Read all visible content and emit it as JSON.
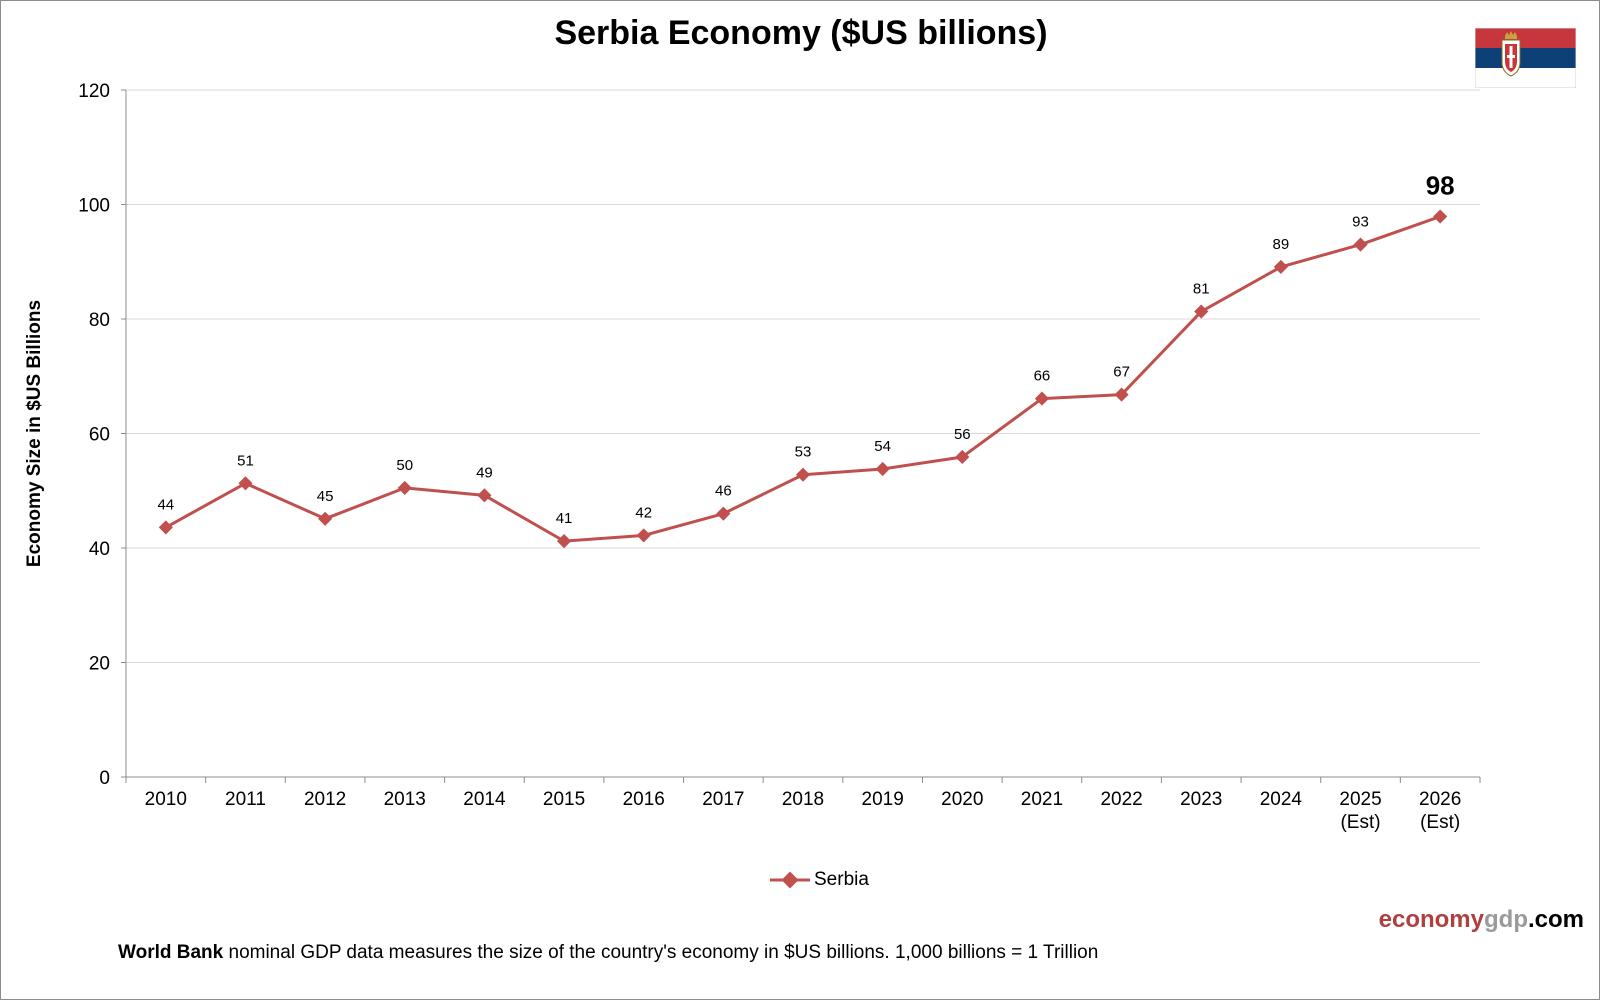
{
  "title": "Serbia Economy ($US billions)",
  "brand": {
    "part1": "economy",
    "part2": "gdp",
    "part3": ".com"
  },
  "footnote": {
    "bold": "World Bank",
    "rest": " nominal GDP data  measures the size of the country's economy in $US billions.  1,000 billions = 1 Trillion"
  },
  "flag": {
    "colors": [
      "#c6363c",
      "#0c4076",
      "#ffffff"
    ]
  },
  "chart_data": {
    "type": "line",
    "title": "Serbia Economy ($US billions)",
    "ylabel": "Economy Size in $US Billions",
    "xlabel": "",
    "ylim": [
      0,
      120
    ],
    "yticks": [
      0,
      20,
      40,
      60,
      80,
      100,
      120
    ],
    "grid": true,
    "legend_position": "bottom",
    "categories": [
      [
        "2010"
      ],
      [
        "2011"
      ],
      [
        "2012"
      ],
      [
        "2013"
      ],
      [
        "2014"
      ],
      [
        "2015"
      ],
      [
        "2016"
      ],
      [
        "2017"
      ],
      [
        "2018"
      ],
      [
        "2019"
      ],
      [
        "2020"
      ],
      [
        "2021"
      ],
      [
        "2022"
      ],
      [
        "2023"
      ],
      [
        "2024"
      ],
      [
        "2025",
        "(Est)"
      ],
      [
        "2026",
        "(Est)"
      ]
    ],
    "series": [
      {
        "name": "Serbia",
        "color": "#c0504d",
        "values": [
          43.6,
          51.3,
          45.1,
          50.5,
          49.2,
          41.2,
          42.2,
          46.0,
          52.8,
          53.8,
          55.9,
          66.1,
          66.8,
          81.3,
          89.1,
          93.0,
          97.9
        ],
        "labels": [
          "44",
          "51",
          "45",
          "50",
          "49",
          "41",
          "42",
          "46",
          "53",
          "54",
          "56",
          "66",
          "67",
          "81",
          "89",
          "93",
          "98"
        ]
      }
    ]
  }
}
